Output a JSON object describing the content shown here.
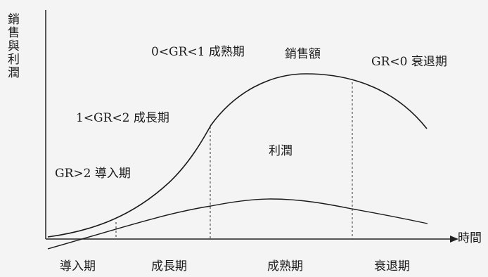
{
  "diagram": {
    "y_axis_label": "銷售與利潤",
    "x_axis_label": "時間",
    "curves": {
      "sales_label": "銷售額",
      "profit_label": "利潤"
    },
    "phase_labels": {
      "intro": "GR>2 導入期",
      "growth": "1<GR<2 成長期",
      "mature": "0<GR<1 成熟期",
      "decline": "GR<0 衰退期"
    },
    "stage_labels": [
      "導入期",
      "成長期",
      "成熟期",
      "衰退期"
    ]
  }
}
